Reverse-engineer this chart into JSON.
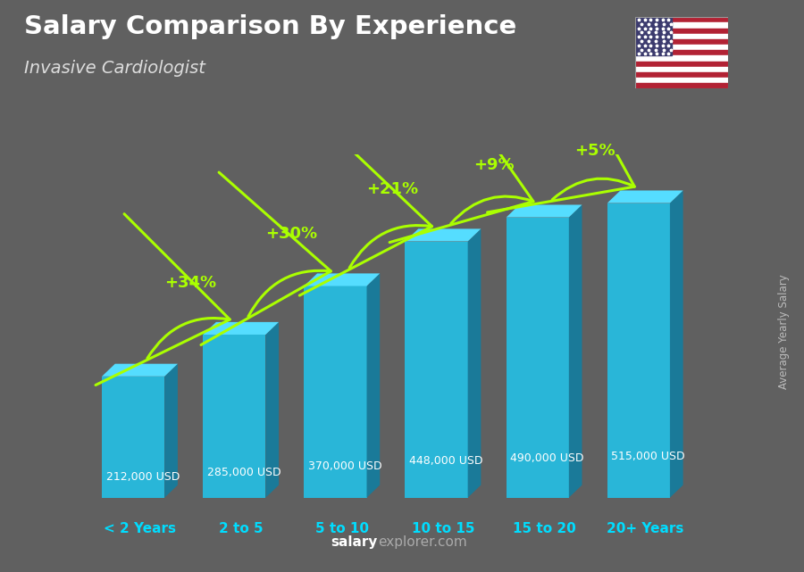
{
  "title": "Salary Comparison By Experience",
  "subtitle": "Invasive Cardiologist",
  "categories": [
    "< 2 Years",
    "2 to 5",
    "5 to 10",
    "10 to 15",
    "15 to 20",
    "20+ Years"
  ],
  "values": [
    212000,
    285000,
    370000,
    448000,
    490000,
    515000
  ],
  "value_labels": [
    "212,000 USD",
    "285,000 USD",
    "370,000 USD",
    "448,000 USD",
    "490,000 USD",
    "515,000 USD"
  ],
  "pct_labels": [
    "+34%",
    "+30%",
    "+21%",
    "+9%",
    "+5%"
  ],
  "bar_color_front": "#29b6d8",
  "bar_color_top": "#55ddff",
  "bar_color_side": "#1a7a99",
  "bg_color": "#606060",
  "title_color": "#ffffff",
  "subtitle_color": "#dddddd",
  "label_color": "#ffffff",
  "pct_color": "#aaff00",
  "xlabel_color": "#00ddff",
  "ylabel_text": "Average Yearly Salary",
  "watermark_salary": "salary",
  "watermark_explorer": "explorer.com",
  "ylim_max": 600000,
  "bar_bottom": 0
}
